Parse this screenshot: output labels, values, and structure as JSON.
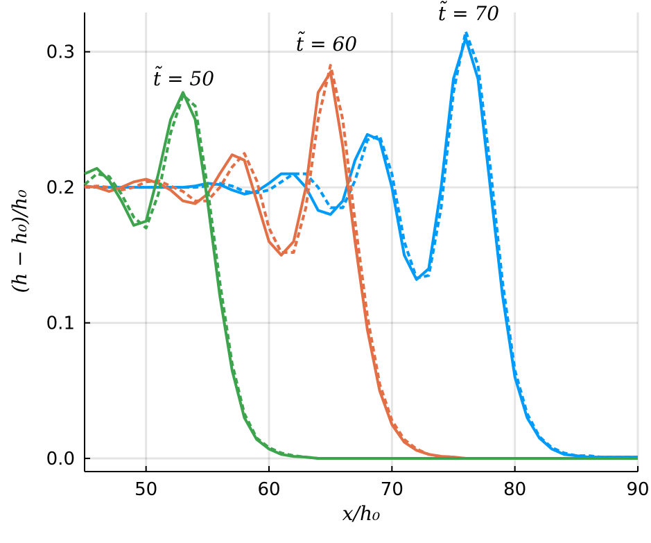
{
  "chart_data": {
    "type": "line",
    "xlabel": "x/h₀",
    "ylabel": "(h − h₀)/h₀",
    "annotations": [
      "t̃ = 50",
      "t̃ = 60",
      "t̃ = 70"
    ],
    "x": [
      45,
      46,
      47,
      48,
      49,
      50,
      51,
      52,
      53,
      54,
      55,
      56,
      57,
      58,
      59,
      60,
      61,
      62,
      63,
      64,
      65,
      66,
      67,
      68,
      69,
      70,
      71,
      72,
      73,
      74,
      75,
      76,
      77,
      78,
      79,
      80,
      81,
      82,
      83,
      84,
      85,
      86,
      87,
      88,
      89,
      90
    ],
    "series": [
      {
        "color": "#009af9",
        "dash": true,
        "values": [
          0.2,
          0.2,
          0.2,
          0.2,
          0.2,
          0.2,
          0.2,
          0.2,
          0.2,
          0.2,
          0.201,
          0.203,
          0.201,
          0.197,
          0.196,
          0.198,
          0.204,
          0.21,
          0.21,
          0.2,
          0.185,
          0.185,
          0.205,
          0.235,
          0.238,
          0.21,
          0.16,
          0.133,
          0.135,
          0.185,
          0.27,
          0.315,
          0.29,
          0.215,
          0.13,
          0.065,
          0.033,
          0.016,
          0.008,
          0.004,
          0.002,
          0.002,
          0.001,
          0.001,
          0.001,
          0.001
        ]
      },
      {
        "color": "#009af9",
        "dash": false,
        "values": [
          0.201,
          0.2,
          0.2,
          0.2,
          0.2,
          0.2,
          0.2,
          0.2,
          0.2,
          0.201,
          0.203,
          0.202,
          0.198,
          0.195,
          0.197,
          0.203,
          0.21,
          0.21,
          0.2,
          0.183,
          0.18,
          0.19,
          0.22,
          0.239,
          0.235,
          0.2,
          0.15,
          0.132,
          0.14,
          0.2,
          0.28,
          0.31,
          0.28,
          0.2,
          0.12,
          0.06,
          0.03,
          0.015,
          0.007,
          0.003,
          0.002,
          0.001,
          0.001,
          0.001,
          0.001,
          0.001
        ]
      },
      {
        "color": "#e26f46",
        "dash": true,
        "values": [
          0.2,
          0.201,
          0.2,
          0.198,
          0.2,
          0.204,
          0.205,
          0.201,
          0.197,
          0.19,
          0.19,
          0.2,
          0.215,
          0.225,
          0.205,
          0.17,
          0.152,
          0.152,
          0.185,
          0.25,
          0.29,
          0.25,
          0.175,
          0.105,
          0.055,
          0.028,
          0.014,
          0.007,
          0.003,
          0.0015,
          0.001,
          0,
          0,
          0,
          0,
          0,
          0,
          0,
          0,
          0,
          0,
          0,
          0,
          0,
          0,
          0
        ]
      },
      {
        "color": "#e26f46",
        "dash": false,
        "values": [
          0.201,
          0.2,
          0.197,
          0.2,
          0.204,
          0.206,
          0.203,
          0.198,
          0.19,
          0.188,
          0.195,
          0.21,
          0.224,
          0.22,
          0.19,
          0.16,
          0.15,
          0.16,
          0.2,
          0.27,
          0.285,
          0.23,
          0.16,
          0.095,
          0.05,
          0.025,
          0.012,
          0.006,
          0.003,
          0.0015,
          0.001,
          0,
          0,
          0,
          0,
          0,
          0,
          0,
          0,
          0,
          0,
          0,
          0,
          0,
          0,
          0
        ]
      },
      {
        "color": "#3da44d",
        "dash": true,
        "values": [
          0.202,
          0.21,
          0.208,
          0.195,
          0.178,
          0.17,
          0.195,
          0.24,
          0.268,
          0.26,
          0.2,
          0.13,
          0.07,
          0.033,
          0.015,
          0.008,
          0.004,
          0.002,
          0.001,
          0,
          0,
          0,
          0,
          0,
          0,
          0,
          0,
          0,
          0,
          0,
          0,
          0,
          0,
          0,
          0,
          0,
          0,
          0,
          0,
          0,
          0,
          0,
          0,
          0,
          0,
          0
        ]
      },
      {
        "color": "#3da44d",
        "dash": false,
        "values": [
          0.21,
          0.214,
          0.205,
          0.19,
          0.172,
          0.175,
          0.21,
          0.25,
          0.27,
          0.25,
          0.19,
          0.12,
          0.065,
          0.03,
          0.014,
          0.007,
          0.003,
          0.0015,
          0.001,
          0,
          0,
          0,
          0,
          0,
          0,
          0,
          0,
          0,
          0,
          0,
          0,
          0,
          0,
          0,
          0,
          0,
          0,
          0,
          0,
          0,
          0,
          0,
          0,
          0,
          0,
          0
        ]
      }
    ],
    "xlim": [
      45,
      90
    ],
    "xticks": [
      50,
      60,
      70,
      80,
      90
    ],
    "ylim": [
      -0.0097,
      0.329
    ],
    "yticks": [
      {
        "value": 0,
        "label": "0.0"
      },
      0.1,
      0.2,
      0.3
    ],
    "grid": true
  }
}
